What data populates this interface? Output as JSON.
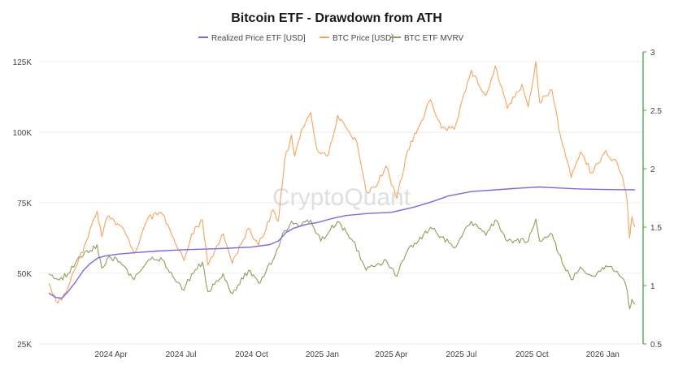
{
  "chart_data": {
    "type": "line",
    "title": "Bitcoin ETF - Drawdown from ATH",
    "watermark": "CryptoQuant",
    "xlabel": "",
    "ylabel_left": "",
    "ylabel_right": "",
    "x_ticks": [
      "2024 Apr",
      "2024 Jul",
      "2024 Oct",
      "2025 Jan",
      "2025 Apr",
      "2025 Jul",
      "2025 Oct",
      "2026 Jan"
    ],
    "y_left": {
      "ticks": [
        "25K",
        "50K",
        "75K",
        "100K",
        "125K"
      ],
      "tick_values": [
        25000,
        50000,
        75000,
        100000,
        125000
      ],
      "range": [
        25000,
        125000
      ]
    },
    "y_right": {
      "ticks": [
        "0.5",
        "1",
        "1.5",
        "2",
        "2.5",
        "3"
      ],
      "tick_values": [
        0.5,
        1,
        1.5,
        2,
        2.5,
        3
      ],
      "range": [
        0.5,
        3
      ]
    },
    "grid": "horizontal",
    "legend_position": "top",
    "x_range": [
      "2024-01-11",
      "2026-02-12"
    ],
    "series": [
      {
        "name": "Realized Price ETF [USD]",
        "axis": "left",
        "color": "#7b68ee",
        "points": [
          [
            "2024-01-11",
            43000
          ],
          [
            "2024-01-20",
            41500
          ],
          [
            "2024-01-28",
            41200
          ],
          [
            "2024-02-05",
            43500
          ],
          [
            "2024-02-15",
            47000
          ],
          [
            "2024-02-25",
            51000
          ],
          [
            "2024-03-05",
            53500
          ],
          [
            "2024-03-15",
            55500
          ],
          [
            "2024-03-25",
            56200
          ],
          [
            "2024-04-10",
            56800
          ],
          [
            "2024-05-01",
            57300
          ],
          [
            "2024-06-01",
            57900
          ],
          [
            "2024-07-01",
            58300
          ],
          [
            "2024-08-01",
            58600
          ],
          [
            "2024-09-01",
            58900
          ],
          [
            "2024-10-01",
            59300
          ],
          [
            "2024-10-25",
            60200
          ],
          [
            "2024-11-05",
            61500
          ],
          [
            "2024-11-15",
            64500
          ],
          [
            "2024-11-25",
            66000
          ],
          [
            "2024-12-10",
            67300
          ],
          [
            "2024-12-25",
            68000
          ],
          [
            "2025-01-15",
            69500
          ],
          [
            "2025-02-01",
            70500
          ],
          [
            "2025-03-01",
            71200
          ],
          [
            "2025-04-01",
            71600
          ],
          [
            "2025-05-01",
            73500
          ],
          [
            "2025-05-25",
            75500
          ],
          [
            "2025-06-15",
            77500
          ],
          [
            "2025-07-15",
            79000
          ],
          [
            "2025-08-15",
            79600
          ],
          [
            "2025-09-15",
            80200
          ],
          [
            "2025-10-10",
            80600
          ],
          [
            "2025-11-01",
            80300
          ],
          [
            "2025-12-01",
            79900
          ],
          [
            "2026-01-01",
            79700
          ],
          [
            "2026-02-12",
            79600
          ]
        ]
      },
      {
        "name": "BTC Price [USD]",
        "axis": "left",
        "color": "#f5a35c",
        "points": [
          [
            "2024-01-11",
            46500
          ],
          [
            "2024-01-23",
            39500
          ],
          [
            "2024-02-01",
            43000
          ],
          [
            "2024-02-15",
            52000
          ],
          [
            "2024-02-29",
            61500
          ],
          [
            "2024-03-14",
            72000
          ],
          [
            "2024-03-20",
            63000
          ],
          [
            "2024-03-27",
            70000
          ],
          [
            "2024-04-12",
            67000
          ],
          [
            "2024-04-20",
            64000
          ],
          [
            "2024-05-01",
            57000
          ],
          [
            "2024-05-20",
            70000
          ],
          [
            "2024-06-07",
            71000
          ],
          [
            "2024-06-24",
            60500
          ],
          [
            "2024-07-05",
            54500
          ],
          [
            "2024-07-15",
            64000
          ],
          [
            "2024-07-29",
            69000
          ],
          [
            "2024-08-05",
            53000
          ],
          [
            "2024-08-25",
            64000
          ],
          [
            "2024-09-06",
            53500
          ],
          [
            "2024-09-27",
            66000
          ],
          [
            "2024-10-10",
            60000
          ],
          [
            "2024-10-29",
            72500
          ],
          [
            "2024-11-05",
            68500
          ],
          [
            "2024-11-13",
            90000
          ],
          [
            "2024-11-22",
            99000
          ],
          [
            "2024-11-26",
            91500
          ],
          [
            "2024-12-05",
            101000
          ],
          [
            "2024-12-17",
            107000
          ],
          [
            "2024-12-25",
            94000
          ],
          [
            "2025-01-09",
            92000
          ],
          [
            "2025-01-21",
            106000
          ],
          [
            "2025-01-31",
            102000
          ],
          [
            "2025-02-15",
            96500
          ],
          [
            "2025-02-27",
            79000
          ],
          [
            "2025-03-10",
            80500
          ],
          [
            "2025-03-25",
            88000
          ],
          [
            "2025-04-08",
            76500
          ],
          [
            "2025-04-22",
            93500
          ],
          [
            "2025-05-10",
            104000
          ],
          [
            "2025-05-22",
            111500
          ],
          [
            "2025-06-05",
            101500
          ],
          [
            "2025-06-22",
            101000
          ],
          [
            "2025-07-14",
            122000
          ],
          [
            "2025-07-25",
            116000
          ],
          [
            "2025-08-02",
            113000
          ],
          [
            "2025-08-14",
            123500
          ],
          [
            "2025-08-30",
            108500
          ],
          [
            "2025-09-18",
            117000
          ],
          [
            "2025-09-26",
            109000
          ],
          [
            "2025-10-06",
            125000
          ],
          [
            "2025-10-11",
            110500
          ],
          [
            "2025-10-27",
            115000
          ],
          [
            "2025-11-05",
            101000
          ],
          [
            "2025-11-21",
            84000
          ],
          [
            "2025-12-03",
            93000
          ],
          [
            "2025-12-18",
            85500
          ],
          [
            "2026-01-05",
            93500
          ],
          [
            "2026-01-10",
            91000
          ],
          [
            "2026-01-20",
            89000
          ],
          [
            "2026-01-27",
            84000
          ],
          [
            "2026-02-02",
            75000
          ],
          [
            "2026-02-05",
            62500
          ],
          [
            "2026-02-08",
            70000
          ],
          [
            "2026-02-12",
            66500
          ]
        ]
      },
      {
        "name": "BTC ETF MVRV",
        "axis": "right",
        "color": "#8f9c58",
        "points": [
          [
            "2024-01-11",
            1.1
          ],
          [
            "2024-01-25",
            1.05
          ],
          [
            "2024-02-05",
            1.1
          ],
          [
            "2024-02-20",
            1.25
          ],
          [
            "2024-03-05",
            1.3
          ],
          [
            "2024-03-14",
            1.35
          ],
          [
            "2024-03-20",
            1.15
          ],
          [
            "2024-03-30",
            1.25
          ],
          [
            "2024-04-15",
            1.18
          ],
          [
            "2024-05-01",
            1.05
          ],
          [
            "2024-05-20",
            1.22
          ],
          [
            "2024-06-07",
            1.22
          ],
          [
            "2024-06-25",
            1.03
          ],
          [
            "2024-07-05",
            0.96
          ],
          [
            "2024-07-15",
            1.1
          ],
          [
            "2024-07-29",
            1.2
          ],
          [
            "2024-08-05",
            0.95
          ],
          [
            "2024-08-25",
            1.1
          ],
          [
            "2024-09-06",
            0.93
          ],
          [
            "2024-09-27",
            1.13
          ],
          [
            "2024-10-10",
            1.02
          ],
          [
            "2024-10-29",
            1.22
          ],
          [
            "2024-11-13",
            1.47
          ],
          [
            "2024-11-22",
            1.55
          ],
          [
            "2024-12-05",
            1.52
          ],
          [
            "2024-12-17",
            1.56
          ],
          [
            "2024-12-30",
            1.38
          ],
          [
            "2025-01-21",
            1.55
          ],
          [
            "2025-02-10",
            1.38
          ],
          [
            "2025-02-27",
            1.13
          ],
          [
            "2025-03-25",
            1.22
          ],
          [
            "2025-04-08",
            1.08
          ],
          [
            "2025-04-22",
            1.3
          ],
          [
            "2025-05-22",
            1.5
          ],
          [
            "2025-06-22",
            1.32
          ],
          [
            "2025-07-14",
            1.55
          ],
          [
            "2025-08-02",
            1.43
          ],
          [
            "2025-08-14",
            1.56
          ],
          [
            "2025-08-30",
            1.38
          ],
          [
            "2025-09-26",
            1.38
          ],
          [
            "2025-10-06",
            1.57
          ],
          [
            "2025-10-11",
            1.38
          ],
          [
            "2025-10-27",
            1.44
          ],
          [
            "2025-11-05",
            1.27
          ],
          [
            "2025-11-21",
            1.05
          ],
          [
            "2025-12-03",
            1.16
          ],
          [
            "2025-12-18",
            1.08
          ],
          [
            "2026-01-05",
            1.17
          ],
          [
            "2026-01-20",
            1.12
          ],
          [
            "2026-01-27",
            1.06
          ],
          [
            "2026-02-02",
            0.95
          ],
          [
            "2026-02-05",
            0.8
          ],
          [
            "2026-02-08",
            0.88
          ],
          [
            "2026-02-12",
            0.84
          ]
        ]
      }
    ]
  }
}
